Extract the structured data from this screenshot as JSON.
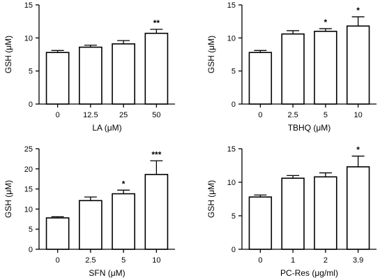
{
  "chart_data": [
    {
      "type": "bar",
      "title": "",
      "xlabel": "LA (μM)",
      "ylabel": "GSH (μM)",
      "ylim": [
        0,
        15
      ],
      "yticks": [
        "0",
        "5",
        "10",
        "15"
      ],
      "categories": [
        "0",
        "12.5",
        "25",
        "50"
      ],
      "values": [
        7.8,
        8.6,
        9.1,
        10.7
      ],
      "errors": [
        0.3,
        0.3,
        0.5,
        0.6
      ],
      "significance": [
        "",
        "",
        "",
        "**"
      ]
    },
    {
      "type": "bar",
      "title": "",
      "xlabel": "TBHQ (μM)",
      "ylabel": "GSH (μM)",
      "ylim": [
        0,
        15
      ],
      "yticks": [
        "0",
        "5",
        "10",
        "15"
      ],
      "categories": [
        "0",
        "2.5",
        "5",
        "10"
      ],
      "values": [
        7.8,
        10.6,
        11.0,
        11.8
      ],
      "errors": [
        0.3,
        0.5,
        0.4,
        1.4
      ],
      "significance": [
        "",
        "",
        "*",
        "*"
      ]
    },
    {
      "type": "bar",
      "title": "",
      "xlabel": "SFN (μM)",
      "ylabel": "GSH (μM)",
      "ylim": [
        0,
        25
      ],
      "yticks": [
        "0",
        "5",
        "10",
        "15",
        "20",
        "25"
      ],
      "categories": [
        "0",
        "2.5",
        "5",
        "10"
      ],
      "values": [
        7.8,
        12.1,
        13.8,
        18.6
      ],
      "errors": [
        0.3,
        0.9,
        0.9,
        3.4
      ],
      "significance": [
        "",
        "",
        "*",
        "***"
      ]
    },
    {
      "type": "bar",
      "title": "",
      "xlabel": "PC-Res (μg/ml)",
      "ylabel": "GSH (μM)",
      "ylim": [
        0,
        15
      ],
      "yticks": [
        "0",
        "5",
        "10",
        "15"
      ],
      "categories": [
        "0",
        "1",
        "2",
        "3.9"
      ],
      "values": [
        7.8,
        10.6,
        10.8,
        12.3
      ],
      "errors": [
        0.3,
        0.4,
        0.6,
        1.6
      ],
      "significance": [
        "",
        "",
        "",
        "*"
      ]
    }
  ]
}
